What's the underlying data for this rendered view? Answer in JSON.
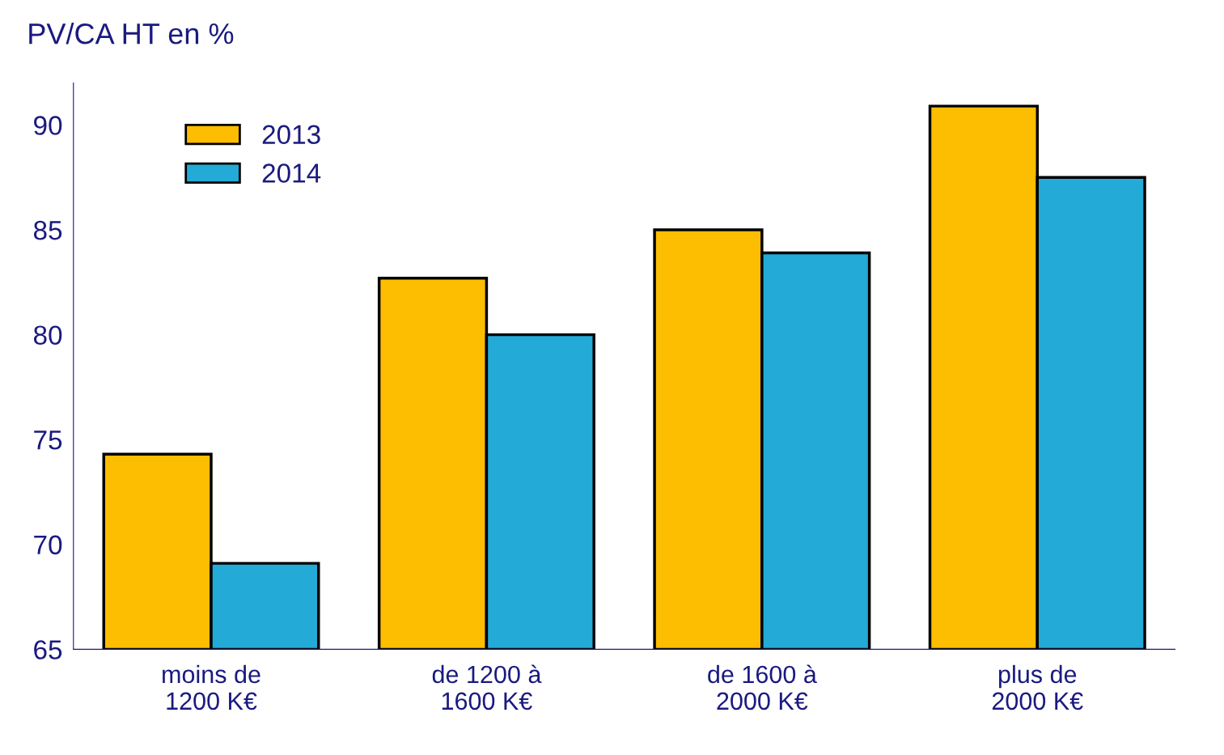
{
  "chart_data": {
    "type": "bar",
    "title": "PV/CA HT en %",
    "categories": [
      "moins de\n1200 K€",
      "de 1200 à\n1600 K€",
      "de 1600 à\n2000 K€",
      "plus de\n2000 K€"
    ],
    "series": [
      {
        "name": "2013",
        "color": "#fdbd00",
        "values": [
          74.3,
          82.7,
          85.0,
          90.9
        ]
      },
      {
        "name": "2014",
        "color": "#23aad6",
        "values": [
          69.1,
          80.0,
          83.9,
          87.5
        ]
      }
    ],
    "ylim": [
      65,
      92
    ],
    "yticks": [
      65,
      70,
      75,
      80,
      85,
      90
    ],
    "grid": false,
    "legend": "top left"
  }
}
